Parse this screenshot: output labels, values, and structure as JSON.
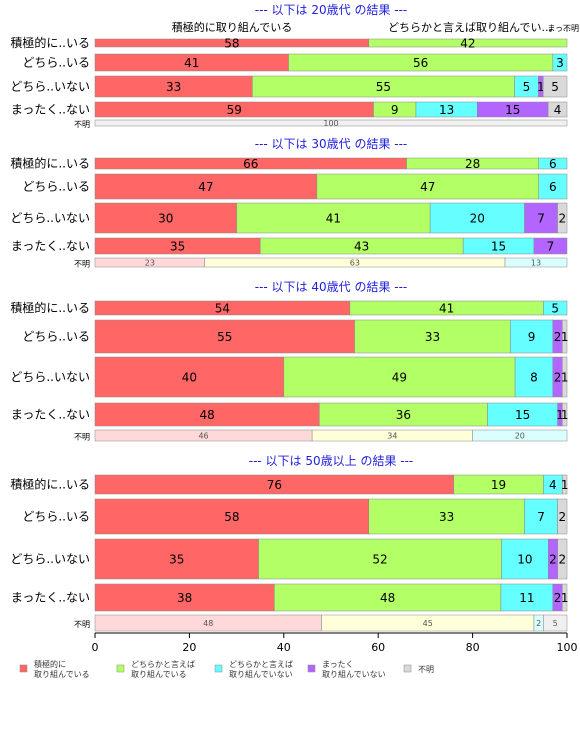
{
  "chart_data": {
    "type": "bar",
    "orientation": "horizontal",
    "stacked": true,
    "xlim": [
      0,
      100
    ],
    "x_ticks": [
      "0",
      "20",
      "40",
      "60",
      "80",
      "100"
    ],
    "legend": {
      "placement": "bottom",
      "entries": [
        {
          "label": "積極的に\n取り組んでいる",
          "color": "#ff6666"
        },
        {
          "label": "どちらかと言えば\n取り組んでいる",
          "color": "#b3ff66"
        },
        {
          "label": "どちらかと言えば\n取り組んでいない",
          "color": "#66ffff"
        },
        {
          "label": "まったく\n取り組んでいない",
          "color": "#b366ff"
        },
        {
          "label": "不明",
          "color": "#d9d9d9"
        }
      ]
    },
    "panels": [
      {
        "title": "--- 以下は 20歳代 の結果 ---",
        "header_labels": [
          "積極的に取り組んでいる",
          "どちらかと言えば取り組んでい...",
          "まっ...",
          "不明"
        ],
        "rows": [
          {
            "label": "積極的に..いる",
            "values": [
              58,
              42,
              0,
              0,
              0
            ],
            "labels": [
              "58",
              "42",
              "",
              "",
              ""
            ]
          },
          {
            "label": "どちら..いる",
            "values": [
              41,
              56,
              3,
              0,
              0
            ],
            "labels": [
              "41",
              "56",
              "3",
              "",
              ""
            ]
          },
          {
            "label": "どちら..いない",
            "values": [
              33,
              55,
              5,
              1,
              5
            ],
            "labels": [
              "33",
              "55",
              "5",
              "1",
              "5"
            ]
          },
          {
            "label": "まったく..ない",
            "values": [
              59,
              9,
              13,
              15,
              4
            ],
            "labels": [
              "59",
              "9",
              "13",
              "15",
              "4"
            ]
          },
          {
            "label": "不明",
            "values": [
              0,
              0,
              0,
              0,
              100
            ],
            "labels": [
              "",
              "",
              "",
              "",
              "100"
            ]
          }
        ]
      },
      {
        "title": "--- 以下は 30歳代 の結果 ---",
        "rows": [
          {
            "label": "積極的に..いる",
            "values": [
              66,
              28,
              6,
              0,
              0
            ],
            "labels": [
              "66",
              "28",
              "6",
              "",
              ""
            ]
          },
          {
            "label": "どちら..いる",
            "values": [
              47,
              47,
              6,
              0,
              0
            ],
            "labels": [
              "47",
              "47",
              "6",
              "",
              ""
            ]
          },
          {
            "label": "どちら..いない",
            "values": [
              30,
              41,
              20,
              7,
              2
            ],
            "labels": [
              "30",
              "41",
              "20",
              "7",
              "2"
            ]
          },
          {
            "label": "まったく..ない",
            "values": [
              35,
              43,
              15,
              7,
              0
            ],
            "labels": [
              "35",
              "43",
              "15",
              "7",
              ""
            ]
          },
          {
            "label": "不明",
            "values": [
              23,
              63,
              13,
              0,
              0
            ],
            "labels": [
              "23",
              "63",
              "13",
              "",
              ""
            ]
          }
        ]
      },
      {
        "title": "--- 以下は 40歳代 の結果 ---",
        "rows": [
          {
            "label": "積極的に..いる",
            "values": [
              54,
              41,
              5,
              0,
              0
            ],
            "labels": [
              "54",
              "41",
              "5",
              "",
              ""
            ]
          },
          {
            "label": "どちら..いる",
            "values": [
              55,
              33,
              9,
              2,
              1
            ],
            "labels": [
              "55",
              "33",
              "9",
              "2",
              "1"
            ]
          },
          {
            "label": "どちら..いない",
            "values": [
              40,
              49,
              8,
              2,
              1
            ],
            "labels": [
              "40",
              "49",
              "8",
              "2",
              "1"
            ]
          },
          {
            "label": "まったく..ない",
            "values": [
              48,
              36,
              15,
              1,
              1
            ],
            "labels": [
              "48",
              "36",
              "15",
              "1",
              "1"
            ]
          },
          {
            "label": "不明",
            "values": [
              46,
              34,
              20,
              0,
              0
            ],
            "labels": [
              "46",
              "34",
              "20",
              "",
              ""
            ]
          }
        ]
      },
      {
        "title": "--- 以下は 50歳以上 の結果 ---",
        "rows": [
          {
            "label": "積極的に..いる",
            "values": [
              76,
              19,
              4,
              0,
              1
            ],
            "labels": [
              "76",
              "19",
              "4",
              "",
              "1"
            ]
          },
          {
            "label": "どちら..いる",
            "values": [
              58,
              33,
              7,
              0,
              2
            ],
            "labels": [
              "58",
              "33",
              "7",
              "",
              "2"
            ]
          },
          {
            "label": "どちら..いない",
            "values": [
              35,
              52,
              10,
              2,
              2
            ],
            "labels": [
              "35",
              "52",
              "10",
              "2",
              "2"
            ]
          },
          {
            "label": "まったく..ない",
            "values": [
              38,
              48,
              11,
              2,
              1
            ],
            "labels": [
              "38",
              "48",
              "11",
              "2",
              "1"
            ]
          },
          {
            "label": "不明",
            "values": [
              48,
              45,
              2,
              0,
              5
            ],
            "labels": [
              "48",
              "45",
              "2",
              "",
              "5"
            ]
          }
        ]
      }
    ]
  }
}
